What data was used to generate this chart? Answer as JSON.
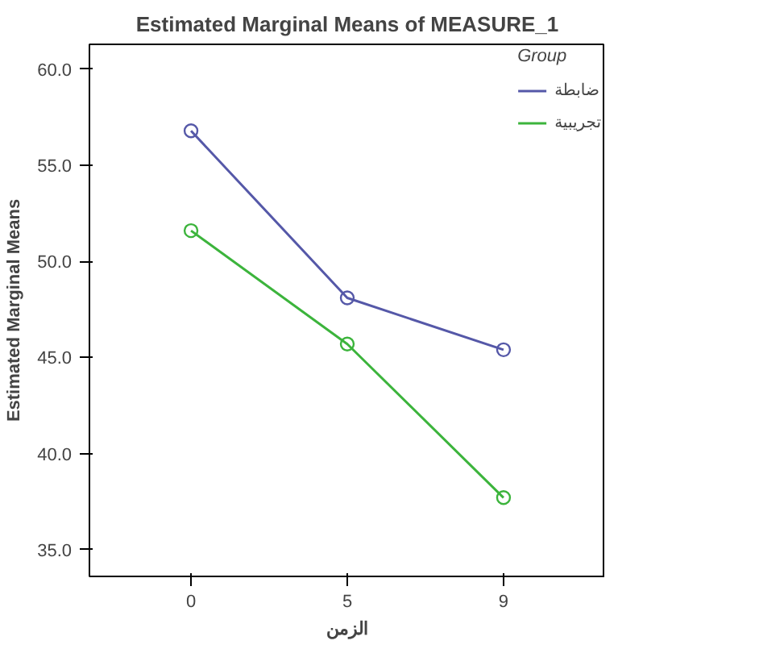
{
  "chart_data": {
    "type": "line",
    "title": "Estimated Marginal Means of MEASURE_1",
    "xlabel": "الزمن",
    "ylabel": "Estimated Marginal Means",
    "legend_title": "Group",
    "categories": [
      "0",
      "5",
      "9"
    ],
    "series": [
      {
        "name": "ضابطة",
        "color": "#5558a8",
        "values": [
          56.8,
          48.1,
          45.4
        ]
      },
      {
        "name": "تجريبية",
        "color": "#3cb43c",
        "values": [
          51.6,
          45.7,
          37.7
        ]
      }
    ],
    "ylim": [
      33.6,
      61.3
    ],
    "yticks": [
      {
        "value": 35,
        "label": "35.0"
      },
      {
        "value": 40,
        "label": "40.0"
      },
      {
        "value": 45,
        "label": "45.0"
      },
      {
        "value": 50,
        "label": "50.0"
      },
      {
        "value": 55,
        "label": "55.0"
      },
      {
        "value": 60,
        "label": "60.0"
      }
    ],
    "grid": false,
    "legend": "top right",
    "marker": "circle",
    "line_style": "solid"
  }
}
